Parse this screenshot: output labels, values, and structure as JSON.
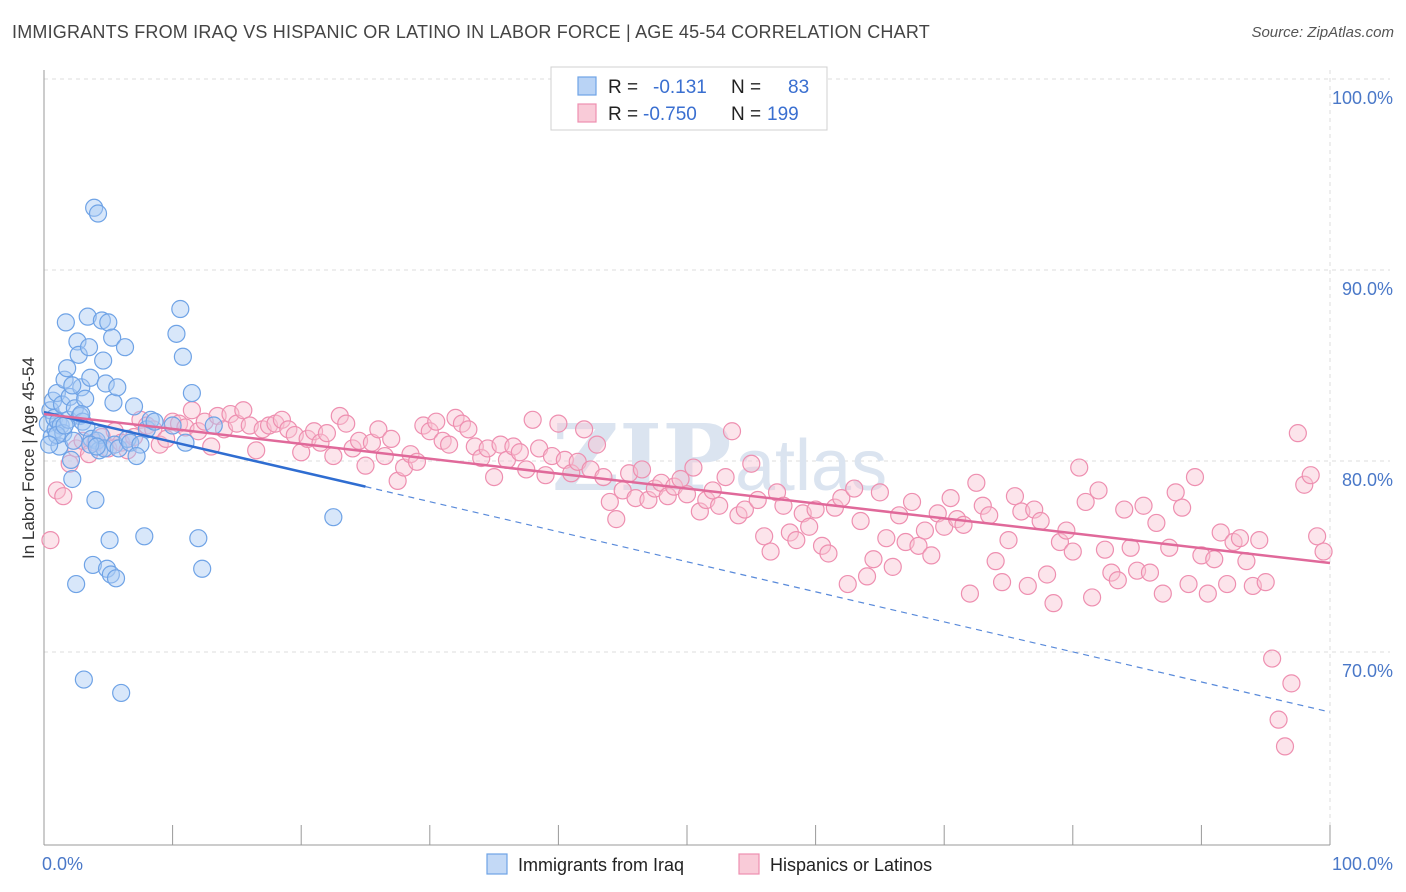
{
  "header": {
    "title": "IMMIGRANTS FROM IRAQ VS HISPANIC OR LATINO IN LABOR FORCE | AGE 45-54 CORRELATION CHART",
    "source": "Source: ZipAtlas.com"
  },
  "watermark": {
    "zip": "ZIP",
    "atlas": "atlas"
  },
  "legend": {
    "rows": [
      {
        "r_label": "R =",
        "r_value": "-0.131",
        "n_label": "N =",
        "n_value": "83",
        "color": "#9ec3f2"
      },
      {
        "r_label": "R =",
        "r_value": "-0.750",
        "n_label": "N =",
        "n_value": "199",
        "color": "#f6b5c8"
      }
    ]
  },
  "bottom_legend": {
    "items": [
      {
        "label": "Immigrants from Iraq",
        "color": "#9ec3f2"
      },
      {
        "label": "Hispanics or Latinos",
        "color": "#f6b5c8"
      }
    ]
  },
  "chart_data": {
    "type": "scatter",
    "title": "IMMIGRANTS FROM IRAQ VS HISPANIC OR LATINO IN LABOR FORCE | AGE 45-54 CORRELATION CHART",
    "xlabel": "",
    "ylabel": "In Labor Force | Age 45-54",
    "xlim": [
      0,
      100
    ],
    "ylim": [
      60,
      103
    ],
    "x_tick_labels": [
      {
        "value": 0,
        "label": "0.0%"
      },
      {
        "value": 100,
        "label": "100.0%"
      }
    ],
    "y_tick_labels": [
      {
        "value": 100,
        "label": "100.0%"
      },
      {
        "value": 90,
        "label": "90.0%"
      },
      {
        "value": 80,
        "label": "80.0%"
      },
      {
        "value": 70,
        "label": "70.0%"
      }
    ],
    "grid": true,
    "legend_position": "top-center",
    "series": [
      {
        "name": "Immigrants from Iraq",
        "color": "#6fa3e6",
        "fill": "#a9c9f3",
        "trend": {
          "x0": 0,
          "y0": 83.5,
          "x1": 25,
          "y1": 79.6,
          "dash_to_x": 100,
          "dash_to_y": 67.8,
          "color": "#2f6dd1"
        },
        "points": [
          [
            0.3,
            82.9
          ],
          [
            0.5,
            83.6
          ],
          [
            0.6,
            82.2
          ],
          [
            0.7,
            84.1
          ],
          [
            0.8,
            83.2
          ],
          [
            0.9,
            82.6
          ],
          [
            1.0,
            84.5
          ],
          [
            1.1,
            83.0
          ],
          [
            1.2,
            81.7
          ],
          [
            1.3,
            82.8
          ],
          [
            1.4,
            83.9
          ],
          [
            1.5,
            82.4
          ],
          [
            1.6,
            85.2
          ],
          [
            1.7,
            88.2
          ],
          [
            1.8,
            85.8
          ],
          [
            1.9,
            83.1
          ],
          [
            2.0,
            84.3
          ],
          [
            2.1,
            81.0
          ],
          [
            2.2,
            80.0
          ],
          [
            2.3,
            82.0
          ],
          [
            2.4,
            83.7
          ],
          [
            2.5,
            74.5
          ],
          [
            2.6,
            87.2
          ],
          [
            2.7,
            86.5
          ],
          [
            2.8,
            83.3
          ],
          [
            2.9,
            84.8
          ],
          [
            3.0,
            83.0
          ],
          [
            3.1,
            69.5
          ],
          [
            3.2,
            84.2
          ],
          [
            3.3,
            82.7
          ],
          [
            3.4,
            88.5
          ],
          [
            3.5,
            86.9
          ],
          [
            3.6,
            85.3
          ],
          [
            3.7,
            82.1
          ],
          [
            3.8,
            75.5
          ],
          [
            3.9,
            94.2
          ],
          [
            4.0,
            78.9
          ],
          [
            4.1,
            82.0
          ],
          [
            4.2,
            93.9
          ],
          [
            4.3,
            81.5
          ],
          [
            4.4,
            82.3
          ],
          [
            4.5,
            88.3
          ],
          [
            4.6,
            86.2
          ],
          [
            4.7,
            81.6
          ],
          [
            4.8,
            85.0
          ],
          [
            4.9,
            75.3
          ],
          [
            5.0,
            88.2
          ],
          [
            5.1,
            76.8
          ],
          [
            5.2,
            75.0
          ],
          [
            5.3,
            87.4
          ],
          [
            5.4,
            84.0
          ],
          [
            5.5,
            81.8
          ],
          [
            5.6,
            74.8
          ],
          [
            5.7,
            84.8
          ],
          [
            5.8,
            81.6
          ],
          [
            6.0,
            68.8
          ],
          [
            6.3,
            86.9
          ],
          [
            6.5,
            82.1
          ],
          [
            6.7,
            81.9
          ],
          [
            7.0,
            83.8
          ],
          [
            7.5,
            81.8
          ],
          [
            8.0,
            82.6
          ],
          [
            8.3,
            83.1
          ],
          [
            8.6,
            83.0
          ],
          [
            7.2,
            81.2
          ],
          [
            7.8,
            77.0
          ],
          [
            10.0,
            82.8
          ],
          [
            10.3,
            87.6
          ],
          [
            10.6,
            88.9
          ],
          [
            10.8,
            86.4
          ],
          [
            11.0,
            81.9
          ],
          [
            11.5,
            84.5
          ],
          [
            12.0,
            76.9
          ],
          [
            12.3,
            75.3
          ],
          [
            13.2,
            82.8
          ],
          [
            22.5,
            78.0
          ],
          [
            1.0,
            82.3
          ],
          [
            1.6,
            82.8
          ],
          [
            2.2,
            84.9
          ],
          [
            0.4,
            81.8
          ],
          [
            3.6,
            81.8
          ],
          [
            2.9,
            83.4
          ],
          [
            4.1,
            81.7
          ]
        ]
      },
      {
        "name": "Hispanics or Latinos",
        "color": "#ee8fb0",
        "fill": "#f8c3d3",
        "trend": {
          "x0": 0,
          "y0": 83.4,
          "x1": 100,
          "y1": 75.6,
          "color": "#e0699a"
        },
        "points": [
          [
            0.5,
            76.8
          ],
          [
            1.0,
            79.4
          ],
          [
            1.5,
            79.1
          ],
          [
            2.0,
            80.8
          ],
          [
            2.5,
            81.6
          ],
          [
            3.0,
            82.0
          ],
          [
            3.5,
            81.3
          ],
          [
            4.0,
            81.9
          ],
          [
            4.5,
            82.2
          ],
          [
            5.0,
            81.6
          ],
          [
            5.5,
            82.5
          ],
          [
            6.0,
            81.9
          ],
          [
            6.5,
            81.5
          ],
          [
            7.0,
            82.2
          ],
          [
            7.5,
            83.1
          ],
          [
            8.0,
            82.8
          ],
          [
            8.5,
            82.6
          ],
          [
            9.0,
            81.8
          ],
          [
            9.5,
            82.1
          ],
          [
            10.0,
            83.0
          ],
          [
            10.5,
            82.9
          ],
          [
            11.0,
            82.7
          ],
          [
            11.5,
            83.6
          ],
          [
            12.0,
            82.5
          ],
          [
            12.5,
            83.0
          ],
          [
            13.0,
            81.7
          ],
          [
            13.5,
            83.3
          ],
          [
            14.0,
            82.6
          ],
          [
            14.5,
            83.4
          ],
          [
            15.0,
            82.9
          ],
          [
            15.5,
            83.6
          ],
          [
            16.0,
            82.8
          ],
          [
            16.5,
            81.5
          ],
          [
            17.0,
            82.6
          ],
          [
            17.5,
            82.8
          ],
          [
            18.0,
            82.9
          ],
          [
            18.5,
            83.1
          ],
          [
            19.0,
            82.6
          ],
          [
            19.5,
            82.3
          ],
          [
            20.0,
            81.4
          ],
          [
            20.5,
            82.1
          ],
          [
            21.0,
            82.5
          ],
          [
            21.5,
            81.9
          ],
          [
            22.0,
            82.4
          ],
          [
            22.5,
            81.2
          ],
          [
            23.0,
            83.3
          ],
          [
            23.5,
            82.9
          ],
          [
            24.0,
            81.6
          ],
          [
            24.5,
            82.0
          ],
          [
            25.0,
            80.7
          ],
          [
            25.5,
            81.9
          ],
          [
            26.0,
            82.6
          ],
          [
            26.5,
            81.2
          ],
          [
            27.0,
            82.1
          ],
          [
            27.5,
            79.9
          ],
          [
            28.0,
            80.6
          ],
          [
            28.5,
            81.3
          ],
          [
            29.0,
            80.9
          ],
          [
            29.5,
            82.8
          ],
          [
            30.0,
            82.5
          ],
          [
            30.5,
            83.0
          ],
          [
            31.0,
            82.0
          ],
          [
            31.5,
            81.8
          ],
          [
            32.0,
            83.2
          ],
          [
            32.5,
            82.9
          ],
          [
            33.0,
            82.6
          ],
          [
            33.5,
            81.7
          ],
          [
            34.0,
            81.1
          ],
          [
            34.5,
            81.6
          ],
          [
            35.0,
            80.1
          ],
          [
            35.5,
            81.8
          ],
          [
            36.0,
            81.0
          ],
          [
            36.5,
            81.7
          ],
          [
            37.0,
            81.4
          ],
          [
            37.5,
            80.5
          ],
          [
            38.0,
            83.1
          ],
          [
            38.5,
            81.6
          ],
          [
            39.0,
            80.2
          ],
          [
            39.5,
            81.2
          ],
          [
            40.0,
            82.9
          ],
          [
            40.5,
            81.0
          ],
          [
            41.0,
            80.3
          ],
          [
            41.5,
            80.9
          ],
          [
            42.0,
            82.6
          ],
          [
            42.5,
            80.5
          ],
          [
            43.0,
            81.8
          ],
          [
            43.5,
            80.1
          ],
          [
            44.0,
            78.8
          ],
          [
            44.5,
            77.9
          ],
          [
            45.0,
            79.4
          ],
          [
            45.5,
            80.3
          ],
          [
            46.0,
            79.0
          ],
          [
            46.5,
            80.5
          ],
          [
            47.0,
            78.9
          ],
          [
            47.5,
            79.5
          ],
          [
            48.0,
            79.8
          ],
          [
            48.5,
            79.1
          ],
          [
            49.0,
            79.6
          ],
          [
            49.5,
            80.0
          ],
          [
            50.0,
            79.2
          ],
          [
            50.5,
            80.6
          ],
          [
            51.0,
            78.3
          ],
          [
            51.5,
            78.9
          ],
          [
            52.0,
            79.4
          ],
          [
            52.5,
            78.6
          ],
          [
            53.0,
            80.1
          ],
          [
            53.5,
            82.5
          ],
          [
            54.0,
            78.1
          ],
          [
            54.5,
            78.4
          ],
          [
            55.0,
            80.8
          ],
          [
            55.5,
            78.9
          ],
          [
            56.0,
            77.0
          ],
          [
            56.5,
            76.2
          ],
          [
            57.0,
            79.3
          ],
          [
            57.5,
            78.6
          ],
          [
            58.0,
            77.2
          ],
          [
            58.5,
            76.8
          ],
          [
            59.0,
            78.2
          ],
          [
            59.5,
            77.5
          ],
          [
            60.0,
            78.4
          ],
          [
            60.5,
            76.5
          ],
          [
            61.0,
            76.1
          ],
          [
            61.5,
            78.5
          ],
          [
            62.0,
            79.0
          ],
          [
            62.5,
            74.5
          ],
          [
            63.0,
            79.5
          ],
          [
            63.5,
            77.8
          ],
          [
            64.0,
            74.9
          ],
          [
            64.5,
            75.8
          ],
          [
            65.0,
            79.3
          ],
          [
            65.5,
            76.9
          ],
          [
            66.0,
            75.4
          ],
          [
            66.5,
            78.1
          ],
          [
            67.0,
            76.7
          ],
          [
            67.5,
            78.8
          ],
          [
            68.0,
            76.5
          ],
          [
            68.5,
            77.3
          ],
          [
            69.0,
            76.0
          ],
          [
            69.5,
            78.2
          ],
          [
            70.0,
            77.5
          ],
          [
            70.5,
            79.0
          ],
          [
            71.0,
            77.9
          ],
          [
            71.5,
            77.6
          ],
          [
            72.0,
            74.0
          ],
          [
            72.5,
            79.8
          ],
          [
            73.0,
            78.6
          ],
          [
            73.5,
            78.1
          ],
          [
            74.0,
            75.7
          ],
          [
            74.5,
            74.6
          ],
          [
            75.0,
            76.8
          ],
          [
            75.5,
            79.1
          ],
          [
            76.0,
            78.3
          ],
          [
            76.5,
            74.4
          ],
          [
            77.0,
            78.4
          ],
          [
            77.5,
            77.8
          ],
          [
            78.0,
            75.0
          ],
          [
            78.5,
            73.5
          ],
          [
            79.0,
            76.7
          ],
          [
            79.5,
            77.3
          ],
          [
            80.0,
            76.2
          ],
          [
            80.5,
            80.6
          ],
          [
            81.0,
            78.8
          ],
          [
            81.5,
            73.8
          ],
          [
            82.0,
            79.4
          ],
          [
            82.5,
            76.3
          ],
          [
            83.0,
            75.1
          ],
          [
            83.5,
            74.7
          ],
          [
            84.0,
            78.4
          ],
          [
            84.5,
            76.4
          ],
          [
            85.0,
            75.2
          ],
          [
            85.5,
            78.6
          ],
          [
            86.0,
            75.1
          ],
          [
            86.5,
            77.7
          ],
          [
            87.0,
            74.0
          ],
          [
            87.5,
            76.4
          ],
          [
            88.0,
            79.3
          ],
          [
            88.5,
            78.5
          ],
          [
            89.0,
            74.5
          ],
          [
            89.5,
            80.1
          ],
          [
            90.0,
            76.0
          ],
          [
            90.5,
            74.0
          ],
          [
            91.0,
            75.8
          ],
          [
            91.5,
            77.2
          ],
          [
            92.0,
            74.5
          ],
          [
            92.5,
            76.7
          ],
          [
            93.0,
            76.9
          ],
          [
            93.5,
            75.7
          ],
          [
            94.0,
            74.4
          ],
          [
            94.5,
            76.8
          ],
          [
            95.0,
            74.6
          ],
          [
            95.5,
            70.6
          ],
          [
            96.0,
            67.4
          ],
          [
            96.5,
            66.0
          ],
          [
            97.0,
            69.3
          ],
          [
            97.5,
            82.4
          ],
          [
            98.0,
            79.7
          ],
          [
            98.5,
            80.2
          ],
          [
            99.0,
            77.0
          ],
          [
            99.5,
            76.2
          ]
        ]
      }
    ]
  }
}
